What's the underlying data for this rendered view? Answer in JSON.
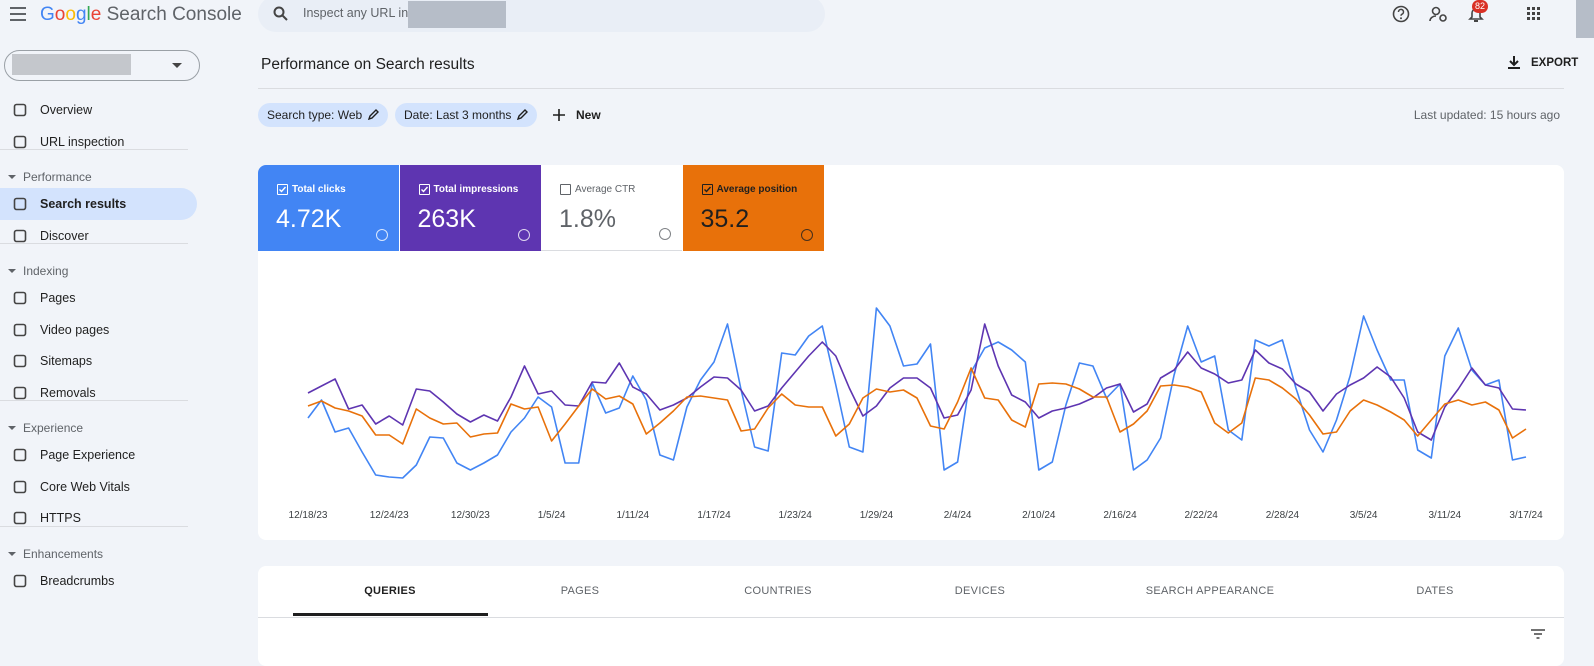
{
  "header": {
    "logo_google": "Google",
    "logo_product": "Search Console",
    "search_placeholder": "Inspect any URL in",
    "notifications": "82"
  },
  "sidebar": {
    "top": [
      "Overview",
      "URL inspection"
    ],
    "sections": [
      {
        "title": "Performance",
        "items": [
          "Search results",
          "Discover"
        ]
      },
      {
        "title": "Indexing",
        "items": [
          "Pages",
          "Video pages",
          "Sitemaps",
          "Removals"
        ]
      },
      {
        "title": "Experience",
        "items": [
          "Page Experience",
          "Core Web Vitals",
          "HTTPS"
        ]
      },
      {
        "title": "Enhancements",
        "items": [
          "Breadcrumbs"
        ]
      }
    ]
  },
  "toolbar": {
    "title": "Performance on Search results",
    "export": "EXPORT",
    "filters": [
      "Search type: Web",
      "Date: Last 3 months"
    ],
    "new": "New",
    "last_updated": "Last updated: 15 hours ago"
  },
  "chart_data": {
    "type": "line",
    "ylim": [
      0,
      180
    ],
    "categories": [
      "12/18/23",
      null,
      null,
      null,
      null,
      null,
      "12/24/23",
      null,
      null,
      null,
      null,
      null,
      "12/30/23",
      null,
      null,
      null,
      null,
      null,
      "1/5/24",
      null,
      null,
      null,
      null,
      null,
      "1/11/24",
      null,
      null,
      null,
      null,
      null,
      "1/17/24",
      null,
      null,
      null,
      null,
      null,
      "1/23/24",
      null,
      null,
      null,
      null,
      null,
      "1/29/24",
      null,
      null,
      null,
      null,
      null,
      "2/4/24",
      null,
      null,
      null,
      null,
      null,
      "2/10/24",
      null,
      null,
      null,
      null,
      null,
      "2/16/24",
      null,
      null,
      null,
      null,
      null,
      "2/22/24",
      null,
      null,
      null,
      null,
      null,
      "2/28/24",
      null,
      null,
      null,
      null,
      null,
      "3/5/24",
      null,
      null,
      null,
      null,
      null,
      "3/11/24",
      null,
      null,
      null,
      null,
      null,
      "3/17/24"
    ],
    "series": [
      {
        "name": "Total clicks",
        "summary": "4.72K",
        "color": "#4285f4",
        "values": [
          62,
          80,
          48,
          52,
          28,
          5,
          3,
          2,
          15,
          43,
          42,
          17,
          10,
          17,
          25,
          48,
          62,
          83,
          73,
          17,
          17,
          97,
          67,
          72,
          104,
          80,
          25,
          20,
          73,
          100,
          118,
          156,
          90,
          33,
          29,
          127,
          125,
          144,
          154,
          95,
          33,
          28,
          172,
          154,
          114,
          116,
          136,
          10,
          18,
          108,
          132,
          138,
          130,
          118,
          10,
          18,
          75,
          117,
          114,
          82,
          96,
          10,
          20,
          42,
          105,
          154,
          118,
          124,
          50,
          40,
          140,
          134,
          140,
          92,
          50,
          28,
          60,
          104,
          164,
          130,
          100,
          100,
          30,
          22,
          124,
          152,
          110,
          95,
          100,
          20,
          23
        ]
      },
      {
        "name": "Total impressions",
        "summary": "263K",
        "color": "#5e35b1",
        "values": [
          87,
          94,
          101,
          71,
          75,
          56,
          64,
          55,
          91,
          89,
          78,
          66,
          58,
          65,
          59,
          83,
          114,
          86,
          89,
          75,
          74,
          98,
          97,
          117,
          93,
          86,
          70,
          75,
          82,
          93,
          103,
          102,
          90,
          69,
          74,
          92,
          108,
          124,
          138,
          124,
          92,
          64,
          74,
          92,
          102,
          102,
          92,
          62,
          65,
          90,
          156,
          114,
          85,
          78,
          62,
          69,
          72,
          76,
          82,
          92,
          96,
          68,
          76,
          102,
          110,
          128,
          112,
          106,
          97,
          100,
          130,
          117,
          111,
          96,
          88,
          69,
          86,
          95,
          102,
          113,
          103,
          82,
          48,
          40,
          73,
          91,
          112,
          95,
          92,
          71,
          70
        ]
      },
      {
        "name": "Average position",
        "summary": "35.2",
        "color": "#e8710a",
        "values": [
          74,
          79,
          72,
          69,
          64,
          45,
          45,
          36,
          71,
          62,
          56,
          57,
          43,
          46,
          47,
          76,
          71,
          73,
          39,
          56,
          74,
          91,
          81,
          84,
          76,
          46,
          57,
          69,
          83,
          84,
          82,
          80,
          49,
          51,
          72,
          86,
          75,
          73,
          73,
          44,
          56,
          82,
          91,
          88,
          90,
          82,
          54,
          51,
          78,
          112,
          82,
          80,
          60,
          53,
          96,
          97,
          96,
          91,
          83,
          83,
          48,
          56,
          69,
          94,
          95,
          93,
          88,
          57,
          47,
          57,
          102,
          100,
          92,
          81,
          65,
          46,
          48,
          69,
          80,
          75,
          68,
          60,
          44,
          60,
          76,
          80,
          75,
          78,
          70,
          42,
          51
        ]
      }
    ],
    "unselected": [
      {
        "name": "Average CTR",
        "summary": "1.8%"
      }
    ]
  },
  "tabs": [
    "QUERIES",
    "PAGES",
    "COUNTRIES",
    "DEVICES",
    "SEARCH APPEARANCE",
    "DATES"
  ]
}
